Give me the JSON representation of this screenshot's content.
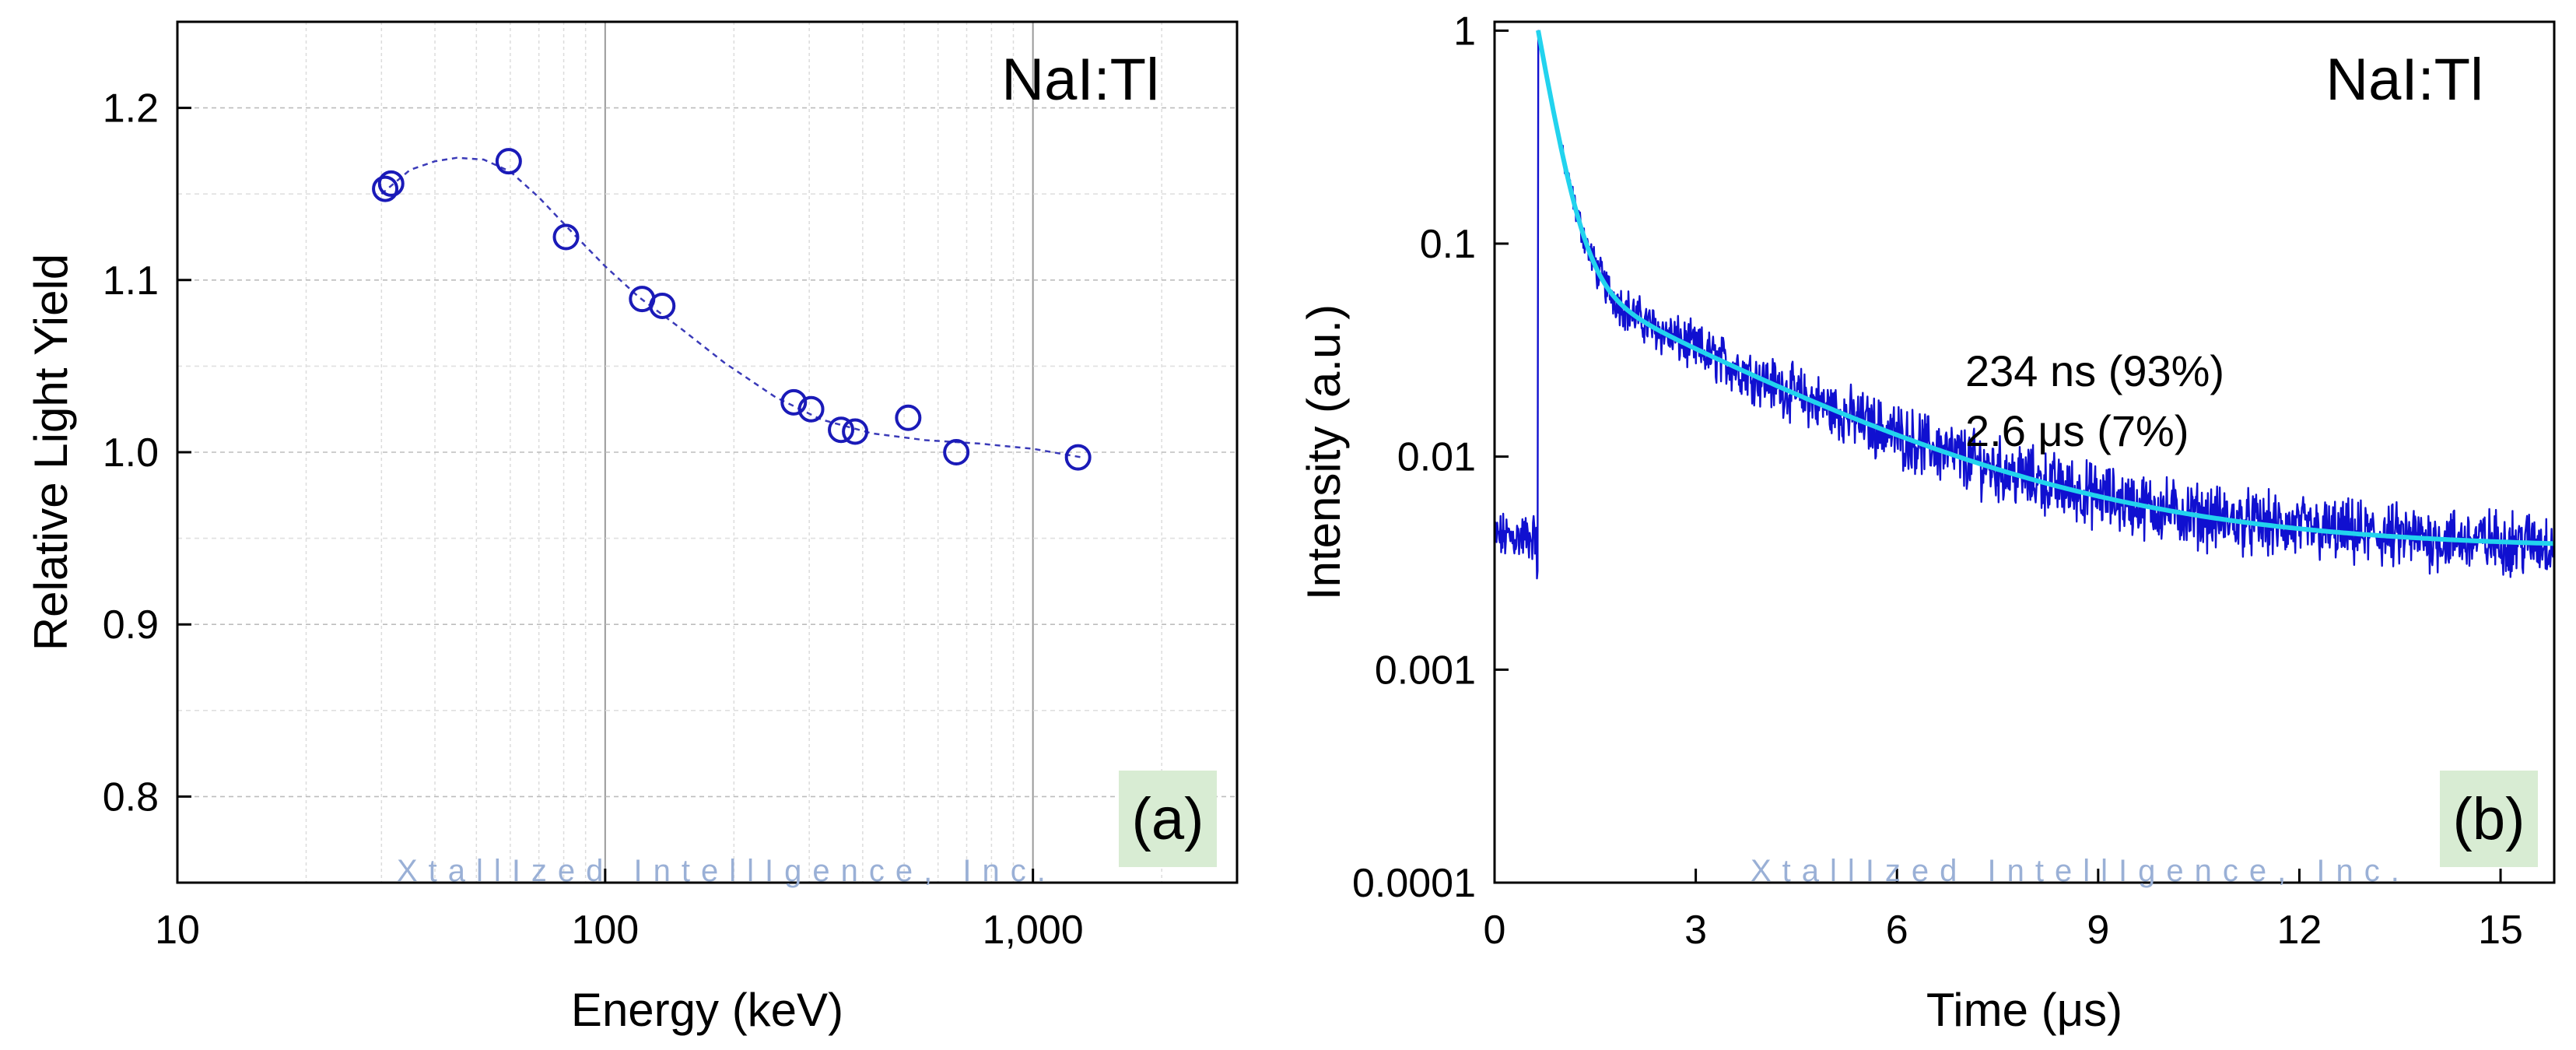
{
  "colors": {
    "marker": "#1a1ab8",
    "fit_a": "#3a3ab8",
    "trace": "#1010d0",
    "fit_b": "#22d3ee",
    "label_bg": "#d8ecd3",
    "watermark": "#9ab0d6",
    "grid": "#bdbdbd"
  },
  "watermark_text": "XtallIzed IntellIgence, Inc.",
  "chart_data": [
    {
      "type": "scatter",
      "panel_label": "(a)",
      "title": "NaI:Tl",
      "xlabel": "Energy (keV)",
      "ylabel": "Relative Light Yield",
      "xscale": "log",
      "xlim": [
        10,
        3000
      ],
      "ylim": [
        0.75,
        1.25
      ],
      "xticks": [
        10,
        100,
        1000
      ],
      "xtick_labels": [
        "10",
        "100",
        "1,000"
      ],
      "yticks": [
        0.8,
        0.9,
        1.0,
        1.1,
        1.2
      ],
      "ytick_labels": [
        "0.8",
        "0.9",
        "1.0",
        "1.1",
        "1.2"
      ],
      "grid": true,
      "points": [
        {
          "x": 30.6,
          "y": 1.153
        },
        {
          "x": 31.6,
          "y": 1.156
        },
        {
          "x": 59.5,
          "y": 1.169
        },
        {
          "x": 81.0,
          "y": 1.125
        },
        {
          "x": 122,
          "y": 1.089
        },
        {
          "x": 136,
          "y": 1.085
        },
        {
          "x": 276,
          "y": 1.029
        },
        {
          "x": 303,
          "y": 1.025
        },
        {
          "x": 356,
          "y": 1.013
        },
        {
          "x": 384,
          "y": 1.012
        },
        {
          "x": 511,
          "y": 1.02
        },
        {
          "x": 662,
          "y": 1.0
        },
        {
          "x": 1275,
          "y": 0.997
        }
      ],
      "fit_curve": [
        {
          "x": 30,
          "y": 1.15
        },
        {
          "x": 35,
          "y": 1.164
        },
        {
          "x": 40,
          "y": 1.169
        },
        {
          "x": 45,
          "y": 1.171
        },
        {
          "x": 52,
          "y": 1.17
        },
        {
          "x": 60,
          "y": 1.163
        },
        {
          "x": 70,
          "y": 1.148
        },
        {
          "x": 82,
          "y": 1.13
        },
        {
          "x": 100,
          "y": 1.108
        },
        {
          "x": 120,
          "y": 1.09
        },
        {
          "x": 150,
          "y": 1.072
        },
        {
          "x": 190,
          "y": 1.052
        },
        {
          "x": 250,
          "y": 1.032
        },
        {
          "x": 320,
          "y": 1.019
        },
        {
          "x": 420,
          "y": 1.011
        },
        {
          "x": 560,
          "y": 1.007
        },
        {
          "x": 750,
          "y": 1.005
        },
        {
          "x": 1000,
          "y": 1.002
        },
        {
          "x": 1300,
          "y": 0.997
        }
      ]
    },
    {
      "type": "line",
      "panel_label": "(b)",
      "title": "NaI:Tl",
      "xlabel": "Time (μs)",
      "ylabel": "Intensity (a.u.)",
      "yscale": "log",
      "xlim": [
        0,
        15.8
      ],
      "ylim": [
        0.0001,
        1.1
      ],
      "xticks": [
        0,
        3,
        6,
        9,
        12,
        15
      ],
      "xtick_labels": [
        "0",
        "3",
        "6",
        "9",
        "12",
        "15"
      ],
      "yticks": [
        0.0001,
        0.001,
        0.01,
        0.1,
        1
      ],
      "ytick_labels": [
        "0.0001",
        "0.001",
        "0.01",
        "0.1",
        "1"
      ],
      "grid": false,
      "annotation_lines": [
        "234 ns (93%)",
        "2.6 μs (7%)"
      ],
      "decay_fit": {
        "onset": 0.65,
        "peak": 1.0,
        "fast_tau_us": 0.234,
        "fast_fraction": 0.93,
        "slow_tau_us": 2.6,
        "slow_fraction": 0.07,
        "baseline": 0.0037,
        "pre_trigger_level": 0.0042
      }
    }
  ]
}
